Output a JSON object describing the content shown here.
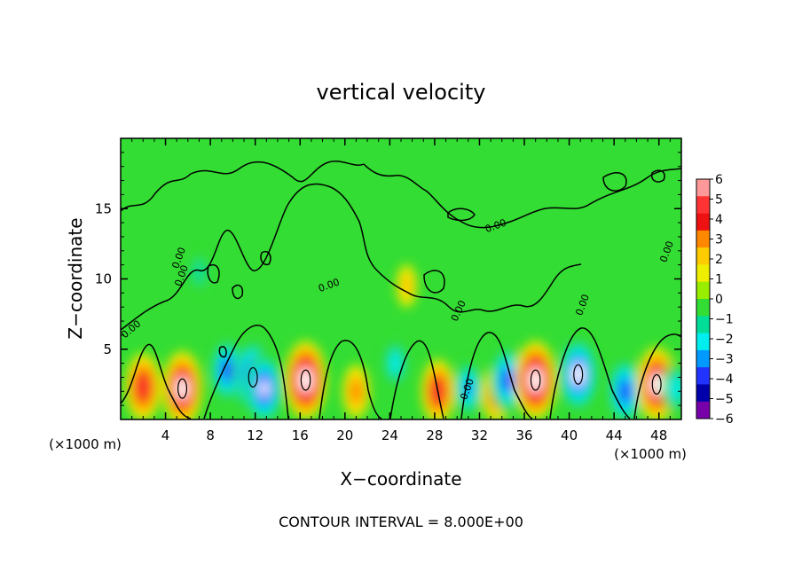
{
  "chart_data": {
    "type": "heatmap",
    "title": "vertical velocity",
    "xlabel": "X−coordinate",
    "ylabel": "Z−coordinate",
    "x_unit_left": "(×1000 m)",
    "x_unit_right": "(×1000 m)",
    "footer": "CONTOUR INTERVAL = 8.000E+00",
    "xlim": [
      0,
      50
    ],
    "ylim": [
      0,
      20
    ],
    "x_ticks": [
      4,
      8,
      12,
      16,
      20,
      24,
      28,
      32,
      36,
      40,
      44,
      48
    ],
    "x_tick_labels": [
      "4",
      "8",
      "12",
      "16",
      "20",
      "24",
      "28",
      "32",
      "36",
      "40",
      "44",
      "48"
    ],
    "y_ticks": [
      5,
      10,
      15
    ],
    "y_tick_labels": [
      "5",
      "10",
      "15"
    ],
    "contour_labels": [
      "0.00",
      "0.00",
      "0.00",
      "0.00",
      "0.00",
      "0.00",
      "0.00",
      "0.00",
      "0.00"
    ],
    "colorbar": {
      "levels": [
        6,
        5,
        4,
        3,
        2,
        1,
        0,
        -1,
        -2,
        -3,
        -4,
        -5,
        -6
      ],
      "labels": [
        "6",
        "5",
        "4",
        "3",
        "2",
        "1",
        "0",
        "−1",
        "−2",
        "−3",
        "−4",
        "−5",
        "−6"
      ],
      "colors": [
        "#ff9999",
        "#ff3333",
        "#ee1111",
        "#ff8800",
        "#ffcc00",
        "#eeee00",
        "#99ee00",
        "#33dd33",
        "#00dd99",
        "#00eeee",
        "#0099ff",
        "#2233ff",
        "#0000aa",
        "#7700aa"
      ]
    },
    "features": [
      {
        "x": 2.0,
        "z": 2.3,
        "w": 5.0
      },
      {
        "x": 5.5,
        "z": 2.2,
        "w": 6.0
      },
      {
        "x": 9.5,
        "z": 3.5,
        "w": -4.5
      },
      {
        "x": 11.8,
        "z": 3.0,
        "w": -6.0
      },
      {
        "x": 12.8,
        "z": 2.2,
        "w": -5.5
      },
      {
        "x": 16.5,
        "z": 2.8,
        "w": 6.5
      },
      {
        "x": 21.0,
        "z": 2.0,
        "w": 3.0
      },
      {
        "x": 24.5,
        "z": 4.0,
        "w": -2.5
      },
      {
        "x": 28.3,
        "z": 2.0,
        "w": 4.5
      },
      {
        "x": 31.0,
        "z": 2.2,
        "w": -3.5
      },
      {
        "x": 33.5,
        "z": 1.8,
        "w": 3.5
      },
      {
        "x": 34.5,
        "z": 2.8,
        "w": -5.0
      },
      {
        "x": 37.0,
        "z": 2.8,
        "w": 6.5
      },
      {
        "x": 40.8,
        "z": 3.2,
        "w": -6.0
      },
      {
        "x": 45.0,
        "z": 2.0,
        "w": -5.0
      },
      {
        "x": 47.8,
        "z": 2.5,
        "w": 6.0
      },
      {
        "x": 49.5,
        "z": 2.2,
        "w": -3.0
      },
      {
        "x": 25.5,
        "z": 9.5,
        "w": 1.5
      },
      {
        "x": 7.0,
        "z": 10.5,
        "w": -1.5
      }
    ]
  }
}
